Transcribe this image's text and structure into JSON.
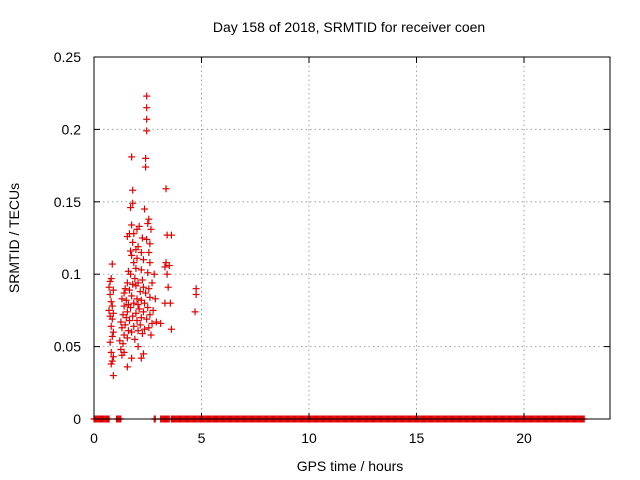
{
  "chart_data": {
    "type": "scatter",
    "title": "Day 158 of 2018, SRMTID for receiver coen",
    "xlabel": "GPS time / hours",
    "ylabel": "SRMTID / TECUs",
    "xlim": [
      0,
      24
    ],
    "ylim": [
      0,
      0.25
    ],
    "x_ticks": [
      0,
      5,
      10,
      15,
      20
    ],
    "y_ticks": [
      0,
      0.05,
      0.1,
      0.15,
      0.2,
      0.25
    ],
    "x_tick_labels": [
      "0",
      "5",
      "10",
      "15",
      "20"
    ],
    "y_tick_labels": [
      "0",
      "0.05",
      "0.1",
      "0.15",
      "0.2",
      "0.25"
    ],
    "grid": true,
    "legend": "none",
    "marker": "plus",
    "color": "#e00000",
    "series": [
      {
        "name": "SRMTID",
        "points": [
          [
            2.45,
            0.223
          ],
          [
            2.45,
            0.215
          ],
          [
            2.45,
            0.207
          ],
          [
            2.45,
            0.199
          ],
          [
            1.75,
            0.181
          ],
          [
            2.4,
            0.18
          ],
          [
            2.4,
            0.174
          ],
          [
            3.35,
            0.159
          ],
          [
            1.8,
            0.158
          ],
          [
            1.8,
            0.149
          ],
          [
            1.7,
            0.146
          ],
          [
            2.35,
            0.145
          ],
          [
            2.55,
            0.138
          ],
          [
            2.5,
            0.135
          ],
          [
            1.75,
            0.134
          ],
          [
            2.1,
            0.133
          ],
          [
            2.0,
            0.131
          ],
          [
            2.65,
            0.131
          ],
          [
            1.65,
            0.128
          ],
          [
            1.85,
            0.128
          ],
          [
            3.4,
            0.127
          ],
          [
            3.6,
            0.127
          ],
          [
            1.55,
            0.126
          ],
          [
            2.25,
            0.125
          ],
          [
            2.45,
            0.124
          ],
          [
            1.8,
            0.122
          ],
          [
            2.6,
            0.121
          ],
          [
            2.05,
            0.119
          ],
          [
            1.95,
            0.117
          ],
          [
            1.7,
            0.116
          ],
          [
            2.2,
            0.115
          ],
          [
            2.55,
            0.115
          ],
          [
            1.75,
            0.113
          ],
          [
            2.0,
            0.111
          ],
          [
            2.3,
            0.11
          ],
          [
            1.85,
            0.108
          ],
          [
            2.6,
            0.108
          ],
          [
            3.35,
            0.108
          ],
          [
            0.85,
            0.107
          ],
          [
            3.5,
            0.106
          ],
          [
            3.3,
            0.105
          ],
          [
            1.95,
            0.104
          ],
          [
            2.2,
            0.103
          ],
          [
            1.6,
            0.102
          ],
          [
            2.5,
            0.101
          ],
          [
            1.7,
            0.1
          ],
          [
            2.8,
            0.1
          ],
          [
            3.4,
            0.1
          ],
          [
            0.8,
            0.097
          ],
          [
            1.9,
            0.097
          ],
          [
            2.25,
            0.096
          ],
          [
            0.75,
            0.095
          ],
          [
            1.55,
            0.094
          ],
          [
            2.05,
            0.094
          ],
          [
            2.7,
            0.094
          ],
          [
            1.8,
            0.093
          ],
          [
            1.95,
            0.092
          ],
          [
            0.7,
            0.091
          ],
          [
            2.3,
            0.091
          ],
          [
            3.45,
            0.091
          ],
          [
            1.45,
            0.09
          ],
          [
            2.55,
            0.09
          ],
          [
            4.75,
            0.09
          ],
          [
            0.9,
            0.089
          ],
          [
            1.65,
            0.089
          ],
          [
            2.15,
            0.088
          ],
          [
            1.4,
            0.087
          ],
          [
            2.4,
            0.087
          ],
          [
            4.75,
            0.086
          ],
          [
            0.75,
            0.086
          ],
          [
            1.75,
            0.085
          ],
          [
            2.6,
            0.084
          ],
          [
            1.3,
            0.083
          ],
          [
            2.0,
            0.083
          ],
          [
            2.85,
            0.083
          ],
          [
            1.5,
            0.082
          ],
          [
            2.2,
            0.082
          ],
          [
            0.8,
            0.081
          ],
          [
            1.85,
            0.08
          ],
          [
            2.35,
            0.08
          ],
          [
            3.3,
            0.08
          ],
          [
            3.55,
            0.08
          ],
          [
            1.6,
            0.079
          ],
          [
            2.05,
            0.079
          ],
          [
            0.85,
            0.078
          ],
          [
            1.4,
            0.078
          ],
          [
            2.5,
            0.077
          ],
          [
            1.7,
            0.077
          ],
          [
            2.1,
            0.076
          ],
          [
            0.7,
            0.075
          ],
          [
            2.75,
            0.075
          ],
          [
            1.55,
            0.074
          ],
          [
            2.3,
            0.074
          ],
          [
            4.7,
            0.074
          ],
          [
            0.9,
            0.073
          ],
          [
            1.95,
            0.073
          ],
          [
            1.35,
            0.072
          ],
          [
            2.6,
            0.072
          ],
          [
            0.75,
            0.071
          ],
          [
            1.8,
            0.071
          ],
          [
            2.2,
            0.07
          ],
          [
            1.5,
            0.07
          ],
          [
            0.85,
            0.069
          ],
          [
            2.45,
            0.069
          ],
          [
            1.65,
            0.068
          ],
          [
            2.0,
            0.068
          ],
          [
            1.25,
            0.067
          ],
          [
            2.9,
            0.067
          ],
          [
            3.1,
            0.066
          ],
          [
            2.7,
            0.066
          ],
          [
            1.45,
            0.065
          ],
          [
            2.15,
            0.065
          ],
          [
            0.8,
            0.064
          ],
          [
            1.85,
            0.064
          ],
          [
            2.55,
            0.063
          ],
          [
            1.3,
            0.063
          ],
          [
            2.35,
            0.062
          ],
          [
            3.6,
            0.062
          ],
          [
            1.6,
            0.061
          ],
          [
            2.05,
            0.061
          ],
          [
            0.9,
            0.06
          ],
          [
            1.75,
            0.06
          ],
          [
            2.25,
            0.059
          ],
          [
            1.4,
            0.058
          ],
          [
            2.65,
            0.058
          ],
          [
            0.85,
            0.057
          ],
          [
            1.55,
            0.056
          ],
          [
            1.9,
            0.055
          ],
          [
            1.2,
            0.054
          ],
          [
            0.75,
            0.053
          ],
          [
            1.35,
            0.052
          ],
          [
            2.05,
            0.05
          ],
          [
            1.25,
            0.048
          ],
          [
            0.8,
            0.046
          ],
          [
            1.4,
            0.046
          ],
          [
            2.3,
            0.045
          ],
          [
            1.3,
            0.044
          ],
          [
            0.9,
            0.043
          ],
          [
            1.75,
            0.042
          ],
          [
            2.2,
            0.042
          ],
          [
            0.85,
            0.04
          ],
          [
            0.8,
            0.038
          ],
          [
            1.55,
            0.036
          ],
          [
            0.9,
            0.03
          ]
        ]
      },
      {
        "name": "SRMTID zero",
        "y": 0,
        "x_ranges": [
          [
            0.0,
            0.7
          ],
          [
            1.05,
            1.25
          ],
          [
            2.8,
            2.85
          ],
          [
            3.1,
            3.5
          ],
          [
            3.6,
            22.8
          ]
        ]
      }
    ]
  }
}
